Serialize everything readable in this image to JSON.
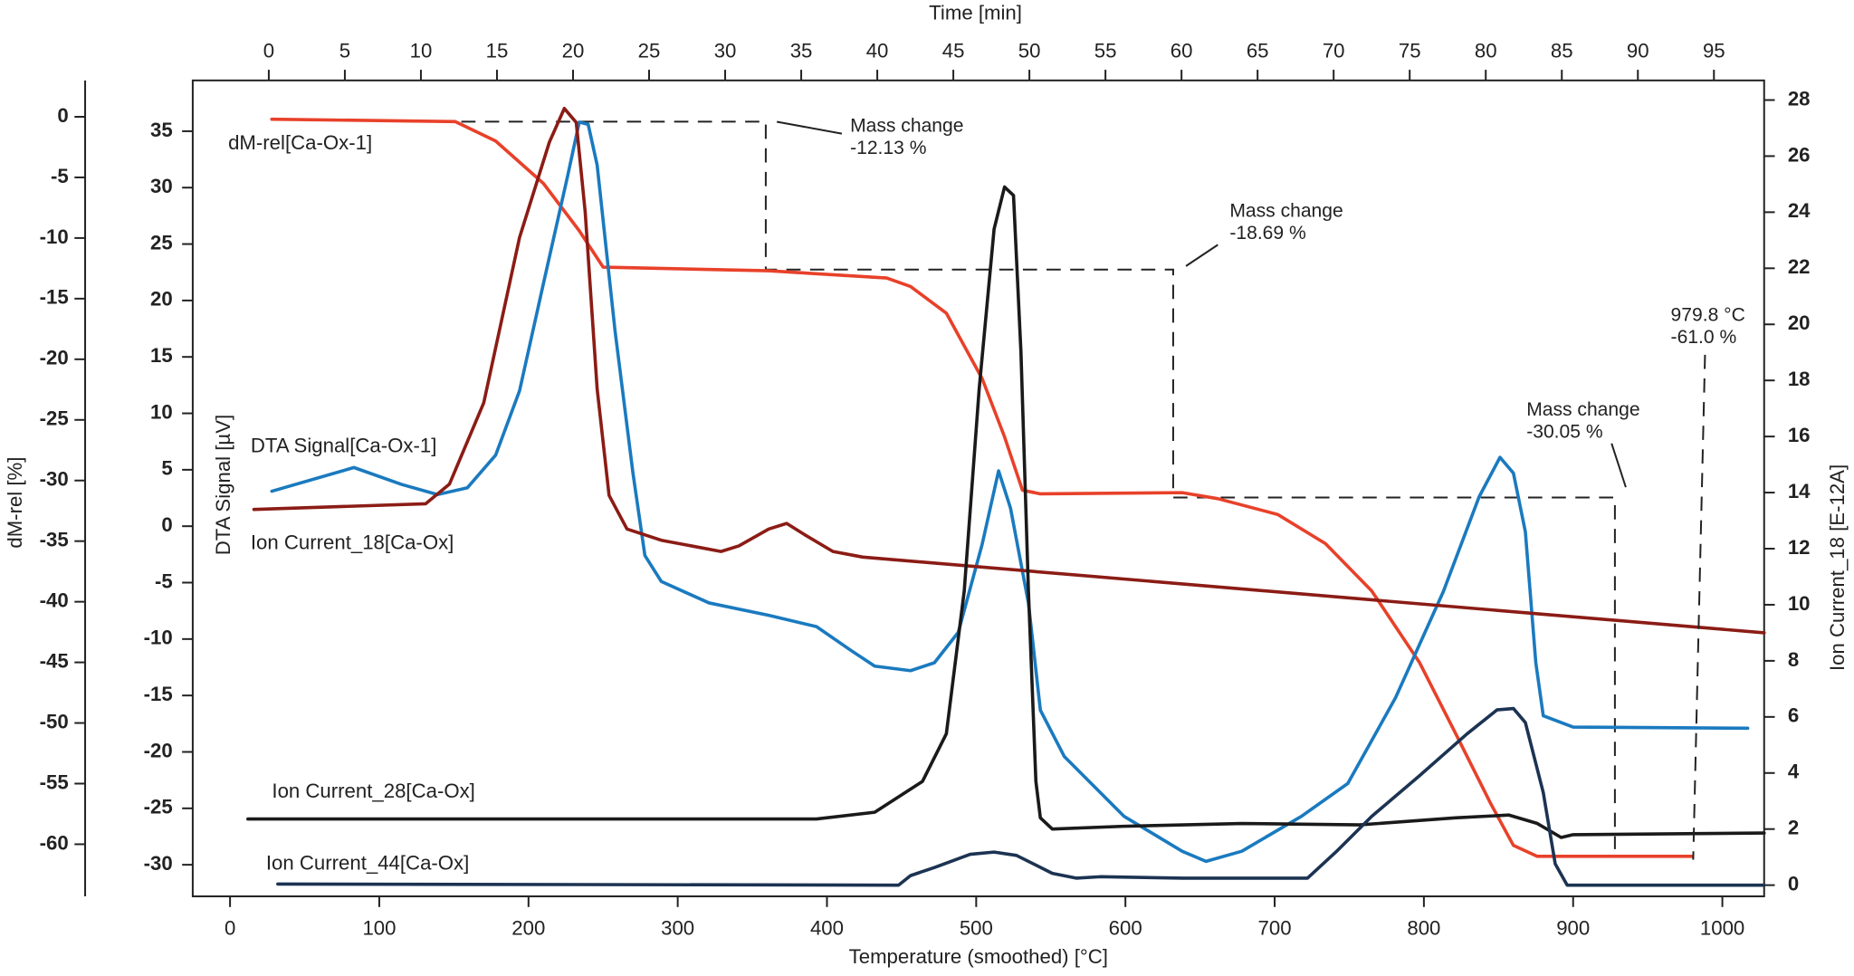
{
  "chart_data": {
    "type": "line",
    "xlabel": "Temperature (smoothed) [°C]",
    "xlim": [
      -25,
      1028
    ],
    "xticks": [
      0,
      100,
      200,
      300,
      400,
      500,
      600,
      700,
      800,
      900,
      1000
    ],
    "x2label": "Time [min]",
    "x2lim": [
      -5,
      98.3
    ],
    "x2ticks": [
      0,
      5,
      10,
      15,
      20,
      25,
      30,
      35,
      40,
      45,
      50,
      55,
      60,
      65,
      70,
      75,
      80,
      85,
      90,
      95
    ],
    "ylabel": "dM-rel [%]",
    "ylim": [
      -64.3,
      3.0
    ],
    "yticks": [
      0,
      -5,
      -10,
      -15,
      -20,
      -25,
      -30,
      -35,
      -40,
      -45,
      -50,
      -55,
      -60
    ],
    "ycolor": "#e8412a",
    "y3label": "DTA Signal [µV]",
    "y3lim": [
      -32.8,
      39.5
    ],
    "y3ticks": [
      35,
      30,
      25,
      20,
      15,
      10,
      5,
      0,
      -5,
      -10,
      -15,
      -20,
      -25,
      -30
    ],
    "y3color": "#1a7abf",
    "y2label": "Ion Current_18 [E-12A]",
    "y2lim": [
      -0.4,
      28.7
    ],
    "y2ticks": [
      0,
      2,
      4,
      6,
      8,
      10,
      12,
      14,
      16,
      18,
      20,
      22,
      24,
      26,
      28
    ],
    "y2color": "#8b1c15",
    "series": [
      {
        "name": "dM-rel[Ca-Ox-1]",
        "color": "#e8412a",
        "axis": "y",
        "x": [
          28,
          151,
          178,
          210,
          234,
          250,
          361,
          440,
          456,
          480,
          504,
          519,
          531,
          543,
          638,
          662,
          702,
          734,
          765,
          797,
          821,
          845,
          860,
          876,
          979.8
        ],
        "values": [
          -0.2,
          -0.4,
          -2,
          -5.5,
          -9.4,
          -12.4,
          -12.7,
          -13.3,
          -14,
          -16.2,
          -21.6,
          -26.4,
          -30.8,
          -31.1,
          -31.0,
          -31.5,
          -32.8,
          -35.2,
          -39.1,
          -45,
          -50.8,
          -56.7,
          -60.1,
          -61.0,
          -61.0
        ]
      },
      {
        "name": "DTA Signal[Ca-Ox-1]",
        "color": "#1a7abf",
        "axis": "y3",
        "x": [
          28,
          83,
          115,
          139,
          159,
          178,
          194,
          210,
          226,
          234,
          240,
          246,
          258,
          270,
          278,
          289,
          321,
          361,
          393,
          416,
          432,
          456,
          472,
          488,
          504,
          515,
          523,
          535,
          543,
          559,
          599,
          638,
          654,
          678,
          718,
          749,
          781,
          813,
          837,
          851,
          860,
          868,
          875,
          880,
          900,
          1017
        ],
        "values": [
          3.1,
          5.2,
          3.7,
          2.8,
          3.4,
          6.3,
          12.0,
          21.5,
          30.9,
          35.8,
          35.6,
          32,
          17.3,
          4.7,
          -2.6,
          -4.9,
          -6.8,
          -7.9,
          -8.9,
          -11,
          -12.4,
          -12.8,
          -12.1,
          -9.4,
          -1.6,
          4.9,
          1.6,
          -6.8,
          -16.3,
          -20.4,
          -25.7,
          -28.8,
          -29.7,
          -28.8,
          -25.7,
          -22.8,
          -15.2,
          -5.8,
          2.6,
          6.1,
          4.7,
          -0.5,
          -12.1,
          -16.8,
          -17.8,
          -17.9
        ]
      },
      {
        "name": "Ion Current_18[Ca-Ox]",
        "color": "#8b1c15",
        "axis": "y2",
        "x": [
          16,
          131,
          147,
          170,
          194,
          214,
          224,
          232,
          238,
          246,
          254,
          266,
          289,
          329,
          341,
          361,
          373,
          385,
          404,
          424,
          1028
        ],
        "values": [
          13.4,
          13.6,
          14.3,
          17.2,
          23.1,
          26.5,
          27.7,
          27.2,
          24.0,
          17.7,
          13.9,
          12.7,
          12.3,
          11.9,
          12.1,
          12.7,
          12.9,
          12.5,
          11.9,
          11.7,
          9.0
        ]
      },
      {
        "name": "Ion Current_28[Ca-Ox]",
        "color": "#1a1a1a",
        "axis": "y2",
        "x": [
          12,
          393,
          432,
          464,
          480,
          492,
          502,
          512,
          519,
          525,
          530,
          535,
          540,
          543,
          551,
          599,
          678,
          757,
          821,
          857,
          876,
          892,
          900,
          1028
        ],
        "values": [
          2.36,
          2.36,
          2.6,
          3.7,
          5.4,
          10.5,
          17.7,
          23.4,
          24.9,
          24.6,
          19.0,
          10.5,
          3.7,
          2.4,
          2.0,
          2.1,
          2.2,
          2.15,
          2.4,
          2.5,
          2.2,
          1.7,
          1.8,
          1.86
        ]
      },
      {
        "name": "Ion Current_44[Ca-Ox]",
        "color": "#1c3352",
        "axis": "y2",
        "x": [
          32,
          448,
          456,
          472,
          496,
          512,
          527,
          551,
          567,
          583,
          638,
          722,
          741,
          765,
          797,
          829,
          849,
          860,
          868,
          880,
          888,
          896,
          1028
        ],
        "values": [
          0.04,
          0,
          0.34,
          0.63,
          1.1,
          1.18,
          1.06,
          0.42,
          0.25,
          0.3,
          0.25,
          0.25,
          1.18,
          2.45,
          3.9,
          5.4,
          6.25,
          6.3,
          5.8,
          3.3,
          0.76,
          0,
          0
        ]
      }
    ],
    "guide": {
      "x": [
        155,
        359,
        359,
        632,
        632,
        928,
        928
      ],
      "values": [
        -0.4,
        -0.4,
        -12.6,
        -12.6,
        -31.4,
        -31.4,
        -60.4
      ]
    },
    "annotations": [
      {
        "lines": [
          "Mass change",
          "-12.13 %"
        ]
      },
      {
        "lines": [
          "Mass change",
          "-18.69 %"
        ]
      },
      {
        "lines": [
          "Mass change",
          "-30.05 %"
        ]
      },
      {
        "lines": [
          "979.8 °C",
          "-61.0 %"
        ]
      }
    ]
  }
}
